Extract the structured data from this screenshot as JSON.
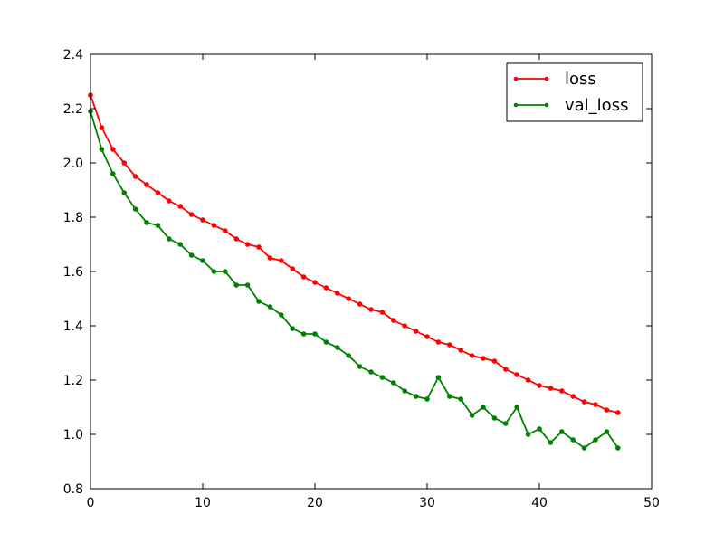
{
  "chart_data": {
    "type": "line",
    "title": "",
    "xlabel": "",
    "ylabel": "",
    "xlim": [
      0,
      50
    ],
    "ylim": [
      0.8,
      2.4
    ],
    "xticks": [
      0,
      10,
      20,
      30,
      40,
      50
    ],
    "xtick_labels": [
      "0",
      "10",
      "20",
      "30",
      "40",
      "50"
    ],
    "yticks": [
      0.8,
      1.0,
      1.2,
      1.4,
      1.6,
      1.8,
      2.0,
      2.2,
      2.4
    ],
    "ytick_labels": [
      "0.8",
      "1.0",
      "1.2",
      "1.4",
      "1.6",
      "1.8",
      "2.0",
      "2.2",
      "2.4"
    ],
    "grid": false,
    "legend": {
      "position": "top-right"
    },
    "x": [
      0,
      1,
      2,
      3,
      4,
      5,
      6,
      7,
      8,
      9,
      10,
      11,
      12,
      13,
      14,
      15,
      16,
      17,
      18,
      19,
      20,
      21,
      22,
      23,
      24,
      25,
      26,
      27,
      28,
      29,
      30,
      31,
      32,
      33,
      34,
      35,
      36,
      37,
      38,
      39,
      40,
      41,
      42,
      43,
      44,
      45,
      46,
      47
    ],
    "series": [
      {
        "name": "loss",
        "color": "#ff0000",
        "values": [
          2.25,
          2.13,
          2.05,
          2.0,
          1.95,
          1.92,
          1.89,
          1.86,
          1.84,
          1.81,
          1.79,
          1.77,
          1.75,
          1.72,
          1.7,
          1.69,
          1.65,
          1.64,
          1.61,
          1.58,
          1.56,
          1.54,
          1.52,
          1.5,
          1.48,
          1.46,
          1.45,
          1.42,
          1.4,
          1.38,
          1.36,
          1.34,
          1.33,
          1.31,
          1.29,
          1.28,
          1.27,
          1.24,
          1.22,
          1.2,
          1.18,
          1.17,
          1.16,
          1.14,
          1.12,
          1.11,
          1.09,
          1.08
        ]
      },
      {
        "name": "val_loss",
        "color": "#008000",
        "values": [
          2.19,
          2.05,
          1.96,
          1.89,
          1.83,
          1.78,
          1.77,
          1.72,
          1.7,
          1.66,
          1.64,
          1.6,
          1.6,
          1.55,
          1.55,
          1.49,
          1.47,
          1.44,
          1.39,
          1.37,
          1.37,
          1.34,
          1.32,
          1.29,
          1.25,
          1.23,
          1.21,
          1.19,
          1.16,
          1.14,
          1.13,
          1.21,
          1.14,
          1.13,
          1.07,
          1.1,
          1.06,
          1.04,
          1.1,
          1.0,
          1.02,
          0.97,
          1.01,
          0.98,
          0.95,
          0.98,
          1.01,
          0.95
        ]
      }
    ]
  }
}
